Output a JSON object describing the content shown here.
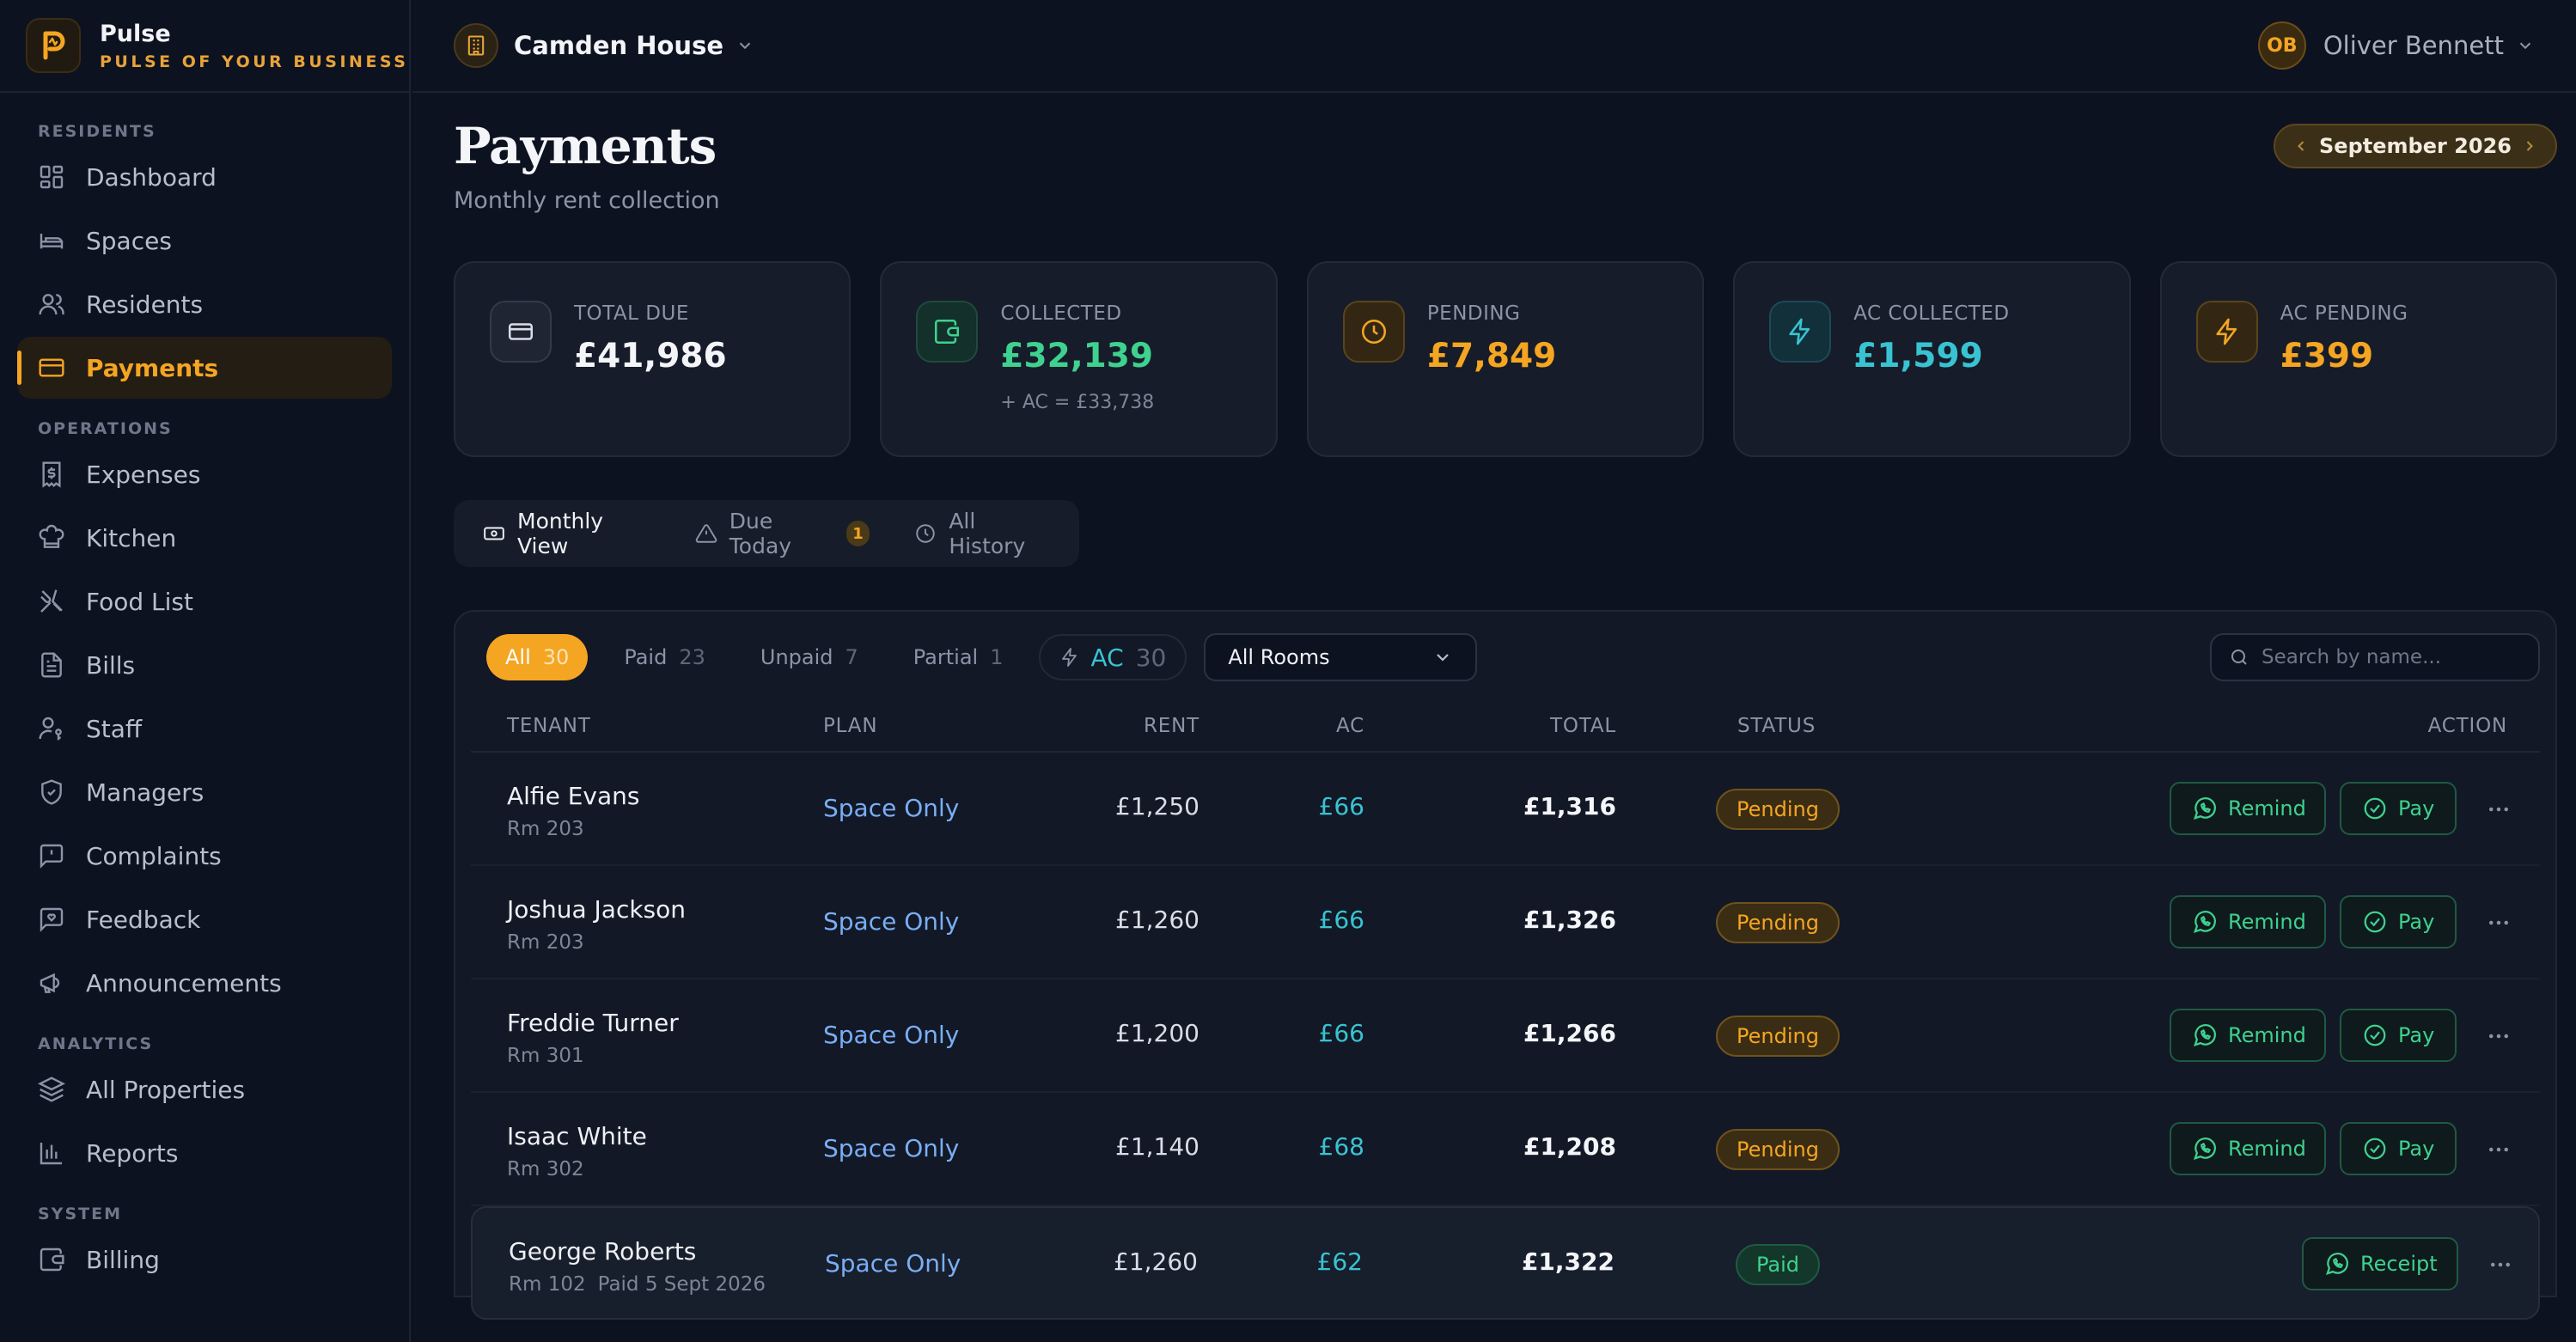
{
  "brand": {
    "name": "Pulse",
    "tagline": "PULSE OF YOUR BUSINESS"
  },
  "sidebar": {
    "sections": [
      {
        "title": "RESIDENTS",
        "items": [
          {
            "label": "Dashboard",
            "icon": "dashboard-icon"
          },
          {
            "label": "Spaces",
            "icon": "bed-icon"
          },
          {
            "label": "Residents",
            "icon": "users-icon"
          },
          {
            "label": "Payments",
            "icon": "credit-card-icon",
            "active": true
          }
        ]
      },
      {
        "title": "OPERATIONS",
        "items": [
          {
            "label": "Expenses",
            "icon": "receipt-dollar-icon"
          },
          {
            "label": "Kitchen",
            "icon": "chef-hat-icon"
          },
          {
            "label": "Food List",
            "icon": "utensils-icon"
          },
          {
            "label": "Bills",
            "icon": "file-text-icon"
          },
          {
            "label": "Staff",
            "icon": "user-key-icon"
          },
          {
            "label": "Managers",
            "icon": "shield-check-icon"
          },
          {
            "label": "Complaints",
            "icon": "message-alert-icon"
          },
          {
            "label": "Feedback",
            "icon": "message-heart-icon"
          },
          {
            "label": "Announcements",
            "icon": "megaphone-icon"
          }
        ]
      },
      {
        "title": "ANALYTICS",
        "items": [
          {
            "label": "All Properties",
            "icon": "layers-icon"
          },
          {
            "label": "Reports",
            "icon": "bar-chart-icon"
          }
        ]
      },
      {
        "title": "SYSTEM",
        "items": [
          {
            "label": "Billing",
            "icon": "wallet-icon"
          }
        ]
      }
    ]
  },
  "topbar": {
    "property": "Camden House",
    "user": {
      "initials": "OB",
      "name": "Oliver Bennett"
    }
  },
  "page": {
    "title": "Payments",
    "subtitle": "Monthly rent collection",
    "month": "September 2026"
  },
  "stats": [
    {
      "label": "TOTAL DUE",
      "value": "£41,986",
      "note": "",
      "color": "#f4f5f8",
      "icon": "credit-card-icon"
    },
    {
      "label": "COLLECTED",
      "value": "£32,139",
      "note": "+ AC = £33,738",
      "color": "#3fd18f",
      "icon": "wallet-icon"
    },
    {
      "label": "PENDING",
      "value": "£7,849",
      "note": "",
      "color": "#f4a522",
      "icon": "clock-icon"
    },
    {
      "label": "AC COLLECTED",
      "value": "£1,599",
      "note": "",
      "color": "#39c3d2",
      "icon": "bolt-icon"
    },
    {
      "label": "AC PENDING",
      "value": "£399",
      "note": "",
      "color": "#f4a522",
      "icon": "bolt-icon"
    }
  ],
  "views": {
    "monthly": "Monthly View",
    "due_today": "Due Today",
    "due_today_count": "1",
    "history": "All History"
  },
  "filters": {
    "all": {
      "label": "All",
      "count": "30"
    },
    "paid": {
      "label": "Paid",
      "count": "23"
    },
    "unpaid": {
      "label": "Unpaid",
      "count": "7"
    },
    "partial": {
      "label": "Partial",
      "count": "1"
    },
    "ac": {
      "label": "AC",
      "count": "30"
    },
    "room_select": "All Rooms",
    "search_placeholder": "Search by name..."
  },
  "table": {
    "columns": {
      "tenant": "TENANT",
      "plan": "PLAN",
      "rent": "RENT",
      "ac": "AC",
      "total": "TOTAL",
      "status": "STATUS",
      "action": "ACTION"
    },
    "buttons": {
      "remind": "Remind",
      "pay": "Pay",
      "receipt": "Receipt"
    },
    "rows": [
      {
        "name": "Alfie Evans",
        "room": "Rm 203",
        "paid_on": "",
        "plan": "Space Only",
        "rent": "£1,250",
        "ac": "£66",
        "total": "£1,316",
        "status": "Pending"
      },
      {
        "name": "Joshua Jackson",
        "room": "Rm 203",
        "paid_on": "",
        "plan": "Space Only",
        "rent": "£1,260",
        "ac": "£66",
        "total": "£1,326",
        "status": "Pending"
      },
      {
        "name": "Freddie Turner",
        "room": "Rm 301",
        "paid_on": "",
        "plan": "Space Only",
        "rent": "£1,200",
        "ac": "£66",
        "total": "£1,266",
        "status": "Pending"
      },
      {
        "name": "Isaac White",
        "room": "Rm 302",
        "paid_on": "",
        "plan": "Space Only",
        "rent": "£1,140",
        "ac": "£68",
        "total": "£1,208",
        "status": "Pending"
      },
      {
        "name": "George Roberts",
        "room": "Rm 102",
        "paid_on": "Paid 5 Sept 2026",
        "plan": "Space Only",
        "rent": "£1,260",
        "ac": "£62",
        "total": "£1,322",
        "status": "Paid"
      }
    ]
  },
  "colors": {
    "accent": "#f4a522",
    "success": "#3fd18f",
    "info": "#39c3d2",
    "link": "#7aaef5",
    "background": "#0d1220"
  }
}
